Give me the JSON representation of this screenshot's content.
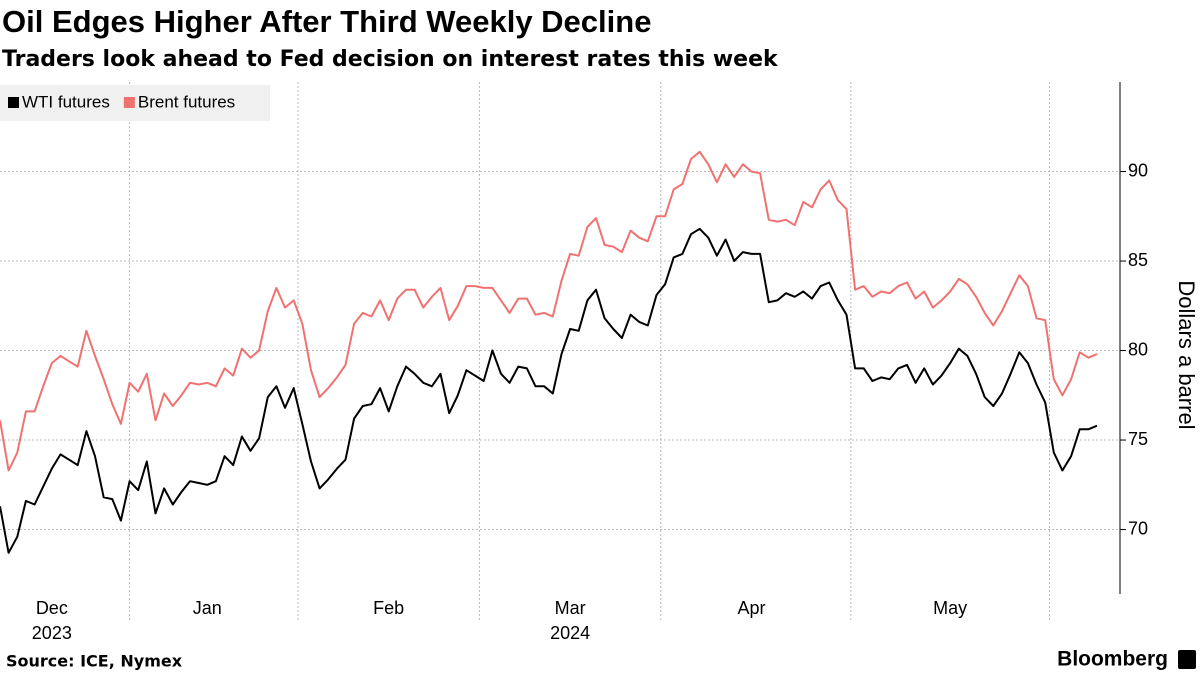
{
  "chart_data": {
    "type": "line",
    "title": "Oil Edges Higher After Third Weekly Decline",
    "subtitle": "Traders look ahead to Fed decision on interest rates this week",
    "source": "Source: ICE, Nymex",
    "brand": "Bloomberg",
    "y_label": "Dollars a barrel",
    "legend_position": "top-left",
    "grid": true,
    "ylim": [
      66.4,
      95
    ],
    "yticks": [
      70,
      75,
      80,
      85,
      90
    ],
    "categories": [
      null,
      null,
      null,
      null,
      null,
      null,
      "Dec",
      null,
      null,
      null,
      null,
      null,
      null,
      null,
      null,
      null,
      null,
      null,
      null,
      null,
      null,
      null,
      null,
      null,
      "Jan",
      null,
      null,
      null,
      null,
      null,
      null,
      null,
      null,
      null,
      null,
      null,
      null,
      null,
      null,
      null,
      null,
      null,
      null,
      null,
      null,
      "Feb",
      null,
      null,
      null,
      null,
      null,
      null,
      null,
      null,
      null,
      null,
      null,
      null,
      null,
      null,
      null,
      null,
      null,
      null,
      null,
      null,
      "Mar",
      null,
      null,
      null,
      null,
      null,
      null,
      null,
      null,
      null,
      null,
      null,
      null,
      null,
      null,
      null,
      null,
      null,
      null,
      null,
      null,
      "Apr",
      null,
      null,
      null,
      null,
      null,
      null,
      null,
      null,
      null,
      null,
      null,
      null,
      null,
      null,
      null,
      null,
      null,
      null,
      null,
      null,
      null,
      null,
      "May",
      null,
      null,
      null,
      null,
      null,
      null,
      null,
      null,
      null,
      null,
      null,
      null,
      null,
      null,
      null,
      null,
      null
    ],
    "category_sublabels": [
      null,
      null,
      null,
      null,
      null,
      null,
      "2023",
      null,
      null,
      null,
      null,
      null,
      null,
      null,
      null,
      null,
      null,
      null,
      null,
      null,
      null,
      null,
      null,
      null,
      null,
      null,
      null,
      null,
      null,
      null,
      null,
      null,
      null,
      null,
      null,
      null,
      null,
      null,
      null,
      null,
      null,
      null,
      null,
      null,
      null,
      null,
      null,
      null,
      null,
      null,
      null,
      null,
      null,
      null,
      null,
      null,
      null,
      null,
      null,
      null,
      null,
      null,
      null,
      null,
      null,
      null,
      "2024",
      null,
      null,
      null,
      null,
      null,
      null,
      null,
      null,
      null,
      null,
      null,
      null,
      null,
      null,
      null,
      null,
      null,
      null,
      null,
      null,
      null,
      null,
      null,
      null,
      null,
      null,
      null,
      null,
      null,
      null,
      null,
      null,
      null,
      null,
      null,
      null,
      null,
      null,
      null,
      null,
      null,
      null,
      null,
      null,
      null,
      null,
      null,
      null,
      null,
      null,
      null,
      null,
      null,
      null,
      null,
      null,
      null,
      null,
      null,
      null,
      null
    ],
    "series": [
      {
        "name": "WTI futures",
        "color": "#000000",
        "values": [
          71.3,
          68.7,
          69.6,
          71.6,
          71.4,
          72.4,
          73.4,
          74.2,
          73.9,
          73.6,
          75.5,
          74.1,
          71.8,
          71.7,
          70.5,
          72.7,
          72.2,
          73.8,
          70.9,
          72.3,
          71.4,
          72.1,
          72.7,
          72.6,
          72.5,
          72.7,
          74.1,
          73.6,
          75.2,
          74.4,
          75.1,
          77.4,
          78.0,
          76.8,
          77.9,
          75.9,
          73.8,
          72.3,
          72.8,
          73.4,
          73.9,
          76.2,
          76.9,
          77.0,
          77.9,
          76.6,
          78.0,
          79.1,
          78.7,
          78.2,
          78.0,
          78.7,
          76.5,
          77.5,
          78.9,
          78.6,
          78.3,
          80.0,
          78.7,
          78.2,
          79.1,
          79.0,
          78.0,
          78.0,
          77.6,
          79.8,
          81.2,
          81.1,
          82.8,
          83.4,
          81.8,
          81.2,
          80.7,
          82.0,
          81.6,
          81.4,
          83.1,
          83.7,
          85.2,
          85.4,
          86.5,
          86.8,
          86.3,
          85.3,
          86.2,
          85.0,
          85.5,
          85.4,
          85.4,
          82.7,
          82.8,
          83.2,
          83.0,
          83.3,
          82.9,
          83.6,
          83.8,
          82.8,
          82.0,
          79.0,
          79.0,
          78.3,
          78.5,
          78.4,
          79.0,
          79.2,
          78.2,
          79.0,
          78.1,
          78.6,
          79.3,
          80.1,
          79.7,
          78.7,
          77.4,
          76.9,
          77.6,
          78.7,
          79.9,
          79.3,
          78.1,
          77.1,
          74.3,
          73.3,
          74.1,
          75.6,
          75.6,
          75.8
        ]
      },
      {
        "name": "Brent futures",
        "color": "#f07270",
        "values": [
          76.1,
          73.3,
          74.3,
          76.6,
          76.6,
          78.0,
          79.3,
          79.7,
          79.4,
          79.1,
          81.1,
          79.7,
          78.4,
          77.0,
          75.9,
          78.2,
          77.7,
          78.7,
          76.1,
          77.6,
          76.9,
          77.5,
          78.2,
          78.1,
          78.2,
          78.0,
          79.0,
          78.6,
          80.1,
          79.6,
          80.0,
          82.2,
          83.5,
          82.4,
          82.8,
          81.5,
          78.9,
          77.4,
          77.9,
          78.5,
          79.2,
          81.5,
          82.1,
          81.9,
          82.8,
          81.7,
          82.9,
          83.4,
          83.4,
          82.4,
          83.0,
          83.5,
          81.7,
          82.5,
          83.6,
          83.6,
          83.5,
          83.5,
          82.8,
          82.1,
          82.9,
          82.9,
          82.0,
          82.1,
          81.9,
          83.9,
          85.4,
          85.3,
          86.9,
          87.4,
          85.9,
          85.8,
          85.5,
          86.7,
          86.3,
          86.1,
          87.5,
          87.5,
          89.0,
          89.3,
          90.7,
          91.1,
          90.4,
          89.4,
          90.4,
          89.7,
          90.4,
          90.0,
          89.9,
          87.3,
          87.2,
          87.3,
          87.0,
          88.3,
          88.0,
          89.0,
          89.5,
          88.4,
          87.9,
          83.4,
          83.6,
          83.0,
          83.3,
          83.2,
          83.6,
          83.8,
          82.9,
          83.3,
          82.4,
          82.8,
          83.3,
          84.0,
          83.7,
          83.0,
          82.1,
          81.4,
          82.2,
          83.2,
          84.2,
          83.6,
          81.8,
          81.7,
          78.4,
          77.5,
          78.4,
          79.9,
          79.6,
          79.8
        ]
      }
    ]
  }
}
